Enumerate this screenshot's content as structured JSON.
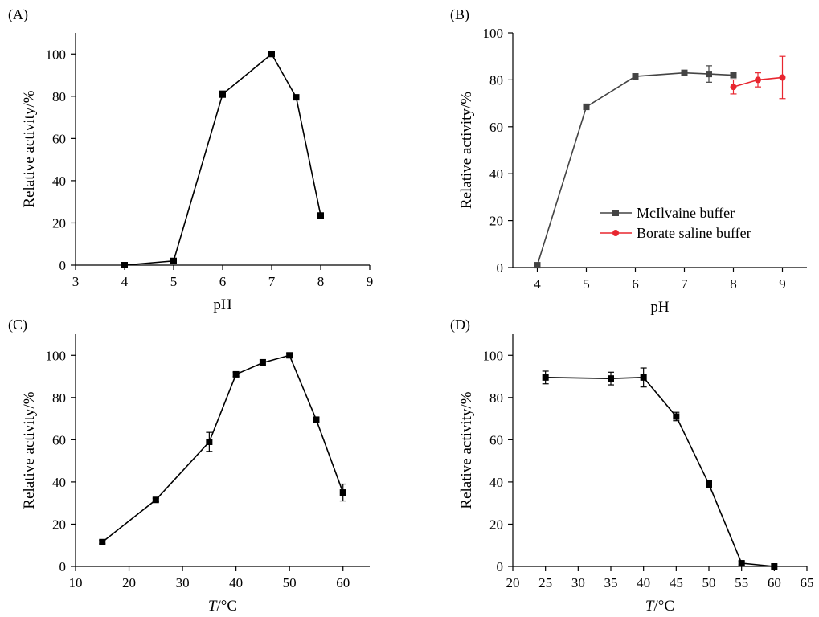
{
  "chart_data": [
    {
      "panel": "(A)",
      "type": "line",
      "xlabel": "pH",
      "xlabel_italic": false,
      "ylabel": "Relative activity/%",
      "xlim": [
        3,
        9
      ],
      "ylim": [
        0,
        110
      ],
      "xticks": [
        3,
        4,
        5,
        6,
        7,
        8,
        9
      ],
      "yticks": [
        0,
        20,
        40,
        60,
        80,
        100
      ],
      "series": [
        {
          "color": "#000000",
          "marker": "square",
          "x": [
            4,
            5,
            6,
            7,
            7.5,
            8
          ],
          "y": [
            0,
            2,
            81,
            100,
            79.5,
            23.5
          ],
          "err": [
            0,
            0.8,
            1.5,
            1,
            0.8,
            0.8
          ]
        }
      ]
    },
    {
      "panel": "(B)",
      "type": "line",
      "xlabel": "pH",
      "xlabel_italic": false,
      "ylabel": "Relative activity/%",
      "xlim": [
        3.5,
        9.5
      ],
      "ylim": [
        0,
        100
      ],
      "xticks": [
        4,
        5,
        6,
        7,
        8,
        9
      ],
      "yticks": [
        0,
        20,
        40,
        60,
        80,
        100
      ],
      "legend": "center-right",
      "series": [
        {
          "name": "McIlvaine buffer",
          "color": "#444444",
          "marker": "square",
          "x": [
            4,
            5,
            6,
            7,
            7.5,
            8
          ],
          "y": [
            1,
            68.5,
            81.5,
            83,
            82.5,
            82
          ],
          "err": [
            0,
            1.2,
            1,
            1,
            3.5,
            1
          ]
        },
        {
          "name": "Borate saline buffer",
          "color": "#e8262f",
          "marker": "circle",
          "x": [
            8,
            8.5,
            9
          ],
          "y": [
            77,
            80,
            81
          ],
          "err": [
            3,
            3,
            9
          ]
        }
      ]
    },
    {
      "panel": "(C)",
      "type": "line",
      "xlabel_italic_part": "T",
      "xlabel_unit_part": "/°C",
      "xlabel_italic": true,
      "ylabel": "Relative activity/%",
      "xlim": [
        10,
        65
      ],
      "ylim": [
        0,
        110
      ],
      "xticks": [
        10,
        20,
        30,
        40,
        50,
        60
      ],
      "yticks": [
        0,
        20,
        40,
        60,
        80,
        100
      ],
      "series": [
        {
          "color": "#000000",
          "marker": "square",
          "x": [
            15,
            25,
            35,
            40,
            45,
            50,
            55,
            60
          ],
          "y": [
            11.5,
            31.5,
            59,
            91,
            96.5,
            100,
            69.5,
            35
          ],
          "err": [
            0.8,
            0.8,
            4.5,
            1,
            1.5,
            0.8,
            1,
            4
          ]
        }
      ]
    },
    {
      "panel": "(D)",
      "type": "line",
      "xlabel_italic_part": "T",
      "xlabel_unit_part": "/°C",
      "xlabel_italic": true,
      "ylabel": "Relative activity/%",
      "xlim": [
        20,
        65
      ],
      "ylim": [
        0,
        110
      ],
      "xticks": [
        20,
        25,
        30,
        35,
        40,
        45,
        50,
        55,
        60,
        65
      ],
      "yticks": [
        0,
        20,
        40,
        60,
        80,
        100
      ],
      "series": [
        {
          "color": "#000000",
          "marker": "square",
          "x": [
            25,
            35,
            40,
            45,
            50,
            55,
            60
          ],
          "y": [
            89.5,
            89,
            89.5,
            71,
            39,
            1.5,
            0
          ],
          "err": [
            3,
            3,
            4.5,
            2,
            1.5,
            0.8,
            0
          ]
        }
      ]
    }
  ]
}
